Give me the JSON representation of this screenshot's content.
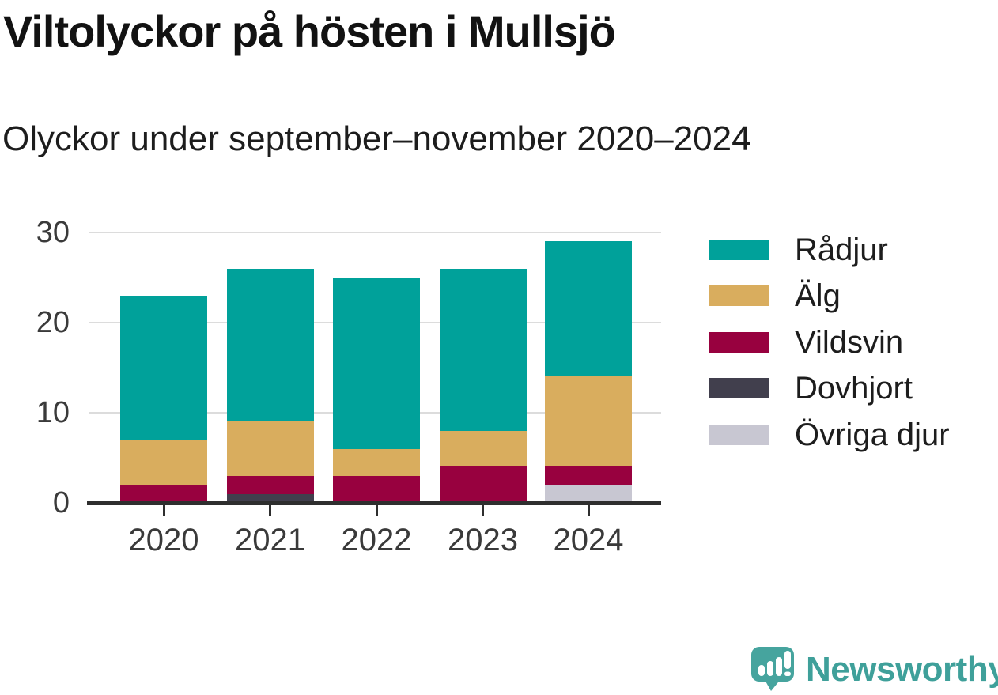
{
  "header": {
    "title": "Viltolyckor på hösten i Mullsjö",
    "subtitle": "Olyckor under september–november 2020–2024"
  },
  "chart_data": {
    "type": "bar",
    "stacked": true,
    "title": "Viltolyckor på hösten i Mullsjö",
    "subtitle": "Olyckor under september–november 2020–2024",
    "categories": [
      "2020",
      "2021",
      "2022",
      "2023",
      "2024"
    ],
    "series": [
      {
        "name": "Rådjur",
        "color": "#00a19a",
        "values": [
          16,
          17,
          19,
          18,
          15
        ]
      },
      {
        "name": "Älg",
        "color": "#d9ad5e",
        "values": [
          5,
          6,
          3,
          4,
          10
        ]
      },
      {
        "name": "Vildsvin",
        "color": "#98013f",
        "values": [
          2,
          2,
          3,
          4,
          2
        ]
      },
      {
        "name": "Dovhjort",
        "color": "#413f4d",
        "values": [
          0,
          1,
          0,
          0,
          0
        ]
      },
      {
        "name": "Övriga djur",
        "color": "#c8c7d2",
        "values": [
          0,
          0,
          0,
          0,
          2
        ]
      }
    ],
    "totals": [
      23,
      26,
      25,
      26,
      29
    ],
    "stack_order_bottom_to_top": [
      "Övriga djur",
      "Dovhjort",
      "Vildsvin",
      "Älg",
      "Rådjur"
    ],
    "xlabel": "",
    "ylabel": "",
    "ylim": [
      0,
      30
    ],
    "yticks": [
      0,
      10,
      20,
      30
    ],
    "grid": "horizontal",
    "legend_position": "right"
  },
  "axes_style": {
    "grid_color": "#dcdcdc",
    "axis_color": "#2e2e2e",
    "tick_label_color": "#3a3a3a"
  },
  "branding": {
    "logo_text": "Newsworthy",
    "logo_icon": "newsworthy-speech-bubble-bar-chart-icon",
    "logo_bubble_color": "#46a49e",
    "logo_text_color": "#3fa09a"
  }
}
